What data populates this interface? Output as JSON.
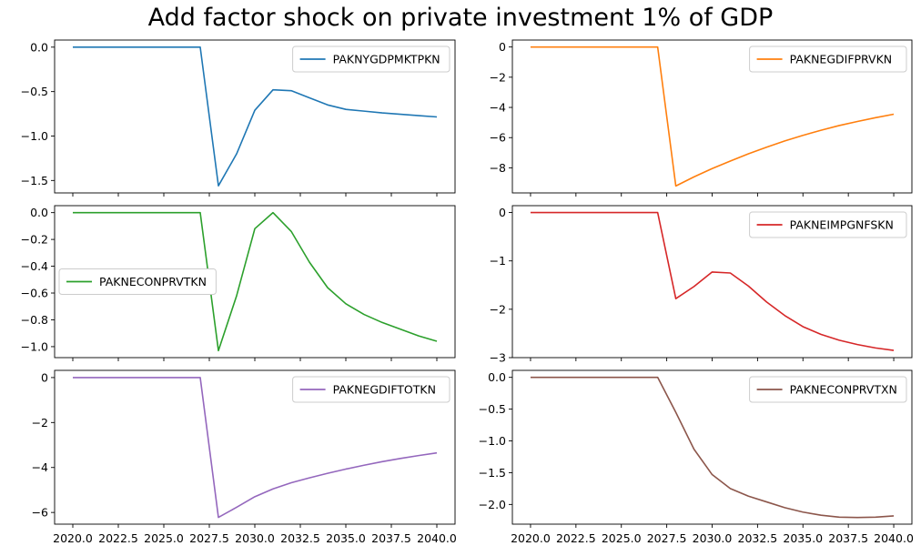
{
  "figure_title": "Add factor shock on private investment 1% of GDP",
  "chart_data": [
    {
      "type": "line",
      "series": [
        {
          "name": "PAKNYGDPMKTPKN",
          "color": "#1f77b4",
          "x": [
            2020,
            2021,
            2022,
            2023,
            2024,
            2025,
            2026,
            2027,
            2028,
            2029,
            2030,
            2031,
            2032,
            2033,
            2034,
            2035,
            2036,
            2037,
            2038,
            2039,
            2040
          ],
          "values": [
            0,
            0,
            0,
            0,
            0,
            0,
            0,
            0,
            -1.56,
            -1.2,
            -0.71,
            -0.48,
            -0.49,
            -0.57,
            -0.65,
            -0.7,
            -0.72,
            -0.74,
            -0.755,
            -0.77,
            -0.785
          ]
        }
      ],
      "xlim": [
        2019,
        2041
      ],
      "ylim": [
        -1.64,
        0.08
      ],
      "yticks": [
        0.0,
        -0.5,
        -1.0,
        -1.5
      ],
      "ytick_labels": [
        "0.0",
        "−0.5",
        "−1.0",
        "−1.5"
      ],
      "xticks": [
        2020.0,
        2022.5,
        2025.0,
        2027.5,
        2030.0,
        2032.5,
        2035.0,
        2037.5,
        2040.0
      ],
      "xtick_labels": [],
      "legend": "upper right",
      "grid": false
    },
    {
      "type": "line",
      "series": [
        {
          "name": "PAKNEGDIFPRVKN",
          "color": "#ff7f0e",
          "x": [
            2020,
            2021,
            2022,
            2023,
            2024,
            2025,
            2026,
            2027,
            2028,
            2029,
            2030,
            2031,
            2032,
            2033,
            2034,
            2035,
            2036,
            2037,
            2038,
            2039,
            2040
          ],
          "values": [
            0,
            0,
            0,
            0,
            0,
            0,
            0,
            0,
            -9.2,
            -8.6,
            -8.05,
            -7.55,
            -7.07,
            -6.63,
            -6.22,
            -5.85,
            -5.51,
            -5.2,
            -4.93,
            -4.68,
            -4.45
          ]
        }
      ],
      "xlim": [
        2019,
        2041
      ],
      "ylim": [
        -9.66,
        0.46
      ],
      "yticks": [
        0,
        -2,
        -4,
        -6,
        -8
      ],
      "ytick_labels": [
        "0",
        "−2",
        "−4",
        "−6",
        "−8"
      ],
      "xticks": [
        2020.0,
        2022.5,
        2025.0,
        2027.5,
        2030.0,
        2032.5,
        2035.0,
        2037.5,
        2040.0
      ],
      "xtick_labels": [],
      "legend": "upper right",
      "grid": false
    },
    {
      "type": "line",
      "series": [
        {
          "name": "PAKNECONPRVTKN",
          "color": "#2ca02c",
          "x": [
            2020,
            2021,
            2022,
            2023,
            2024,
            2025,
            2026,
            2027,
            2028,
            2029,
            2030,
            2031,
            2032,
            2033,
            2034,
            2035,
            2036,
            2037,
            2038,
            2039,
            2040
          ],
          "values": [
            0,
            0,
            0,
            0,
            0,
            0,
            0,
            0,
            -1.03,
            -0.62,
            -0.12,
            0.0,
            -0.14,
            -0.37,
            -0.56,
            -0.68,
            -0.76,
            -0.82,
            -0.87,
            -0.92,
            -0.96
          ]
        }
      ],
      "xlim": [
        2019,
        2041
      ],
      "ylim": [
        -1.082,
        0.052
      ],
      "yticks": [
        0.0,
        -0.2,
        -0.4,
        -0.6,
        -0.8,
        -1.0
      ],
      "ytick_labels": [
        "0.0",
        "−0.2",
        "−0.4",
        "−0.6",
        "−0.8",
        "−1.0"
      ],
      "xticks": [
        2020.0,
        2022.5,
        2025.0,
        2027.5,
        2030.0,
        2032.5,
        2035.0,
        2037.5,
        2040.0
      ],
      "xtick_labels": [],
      "legend": "center left",
      "grid": false
    },
    {
      "type": "line",
      "series": [
        {
          "name": "PAKNEIMPGNFSKN",
          "color": "#d62728",
          "x": [
            2020,
            2021,
            2022,
            2023,
            2024,
            2025,
            2026,
            2027,
            2028,
            2029,
            2030,
            2031,
            2032,
            2033,
            2034,
            2035,
            2036,
            2037,
            2038,
            2039,
            2040
          ],
          "values": [
            0,
            0,
            0,
            0,
            0,
            0,
            0,
            0,
            -1.78,
            -1.53,
            -1.23,
            -1.25,
            -1.52,
            -1.85,
            -2.13,
            -2.36,
            -2.52,
            -2.64,
            -2.73,
            -2.8,
            -2.85
          ]
        }
      ],
      "xlim": [
        2019,
        2041
      ],
      "ylim": [
        -3.0,
        0.142
      ],
      "yticks": [
        0,
        -1,
        -2,
        -3
      ],
      "ytick_labels": [
        "0",
        "−1",
        "−2",
        "−3"
      ],
      "xticks": [
        2020.0,
        2022.5,
        2025.0,
        2027.5,
        2030.0,
        2032.5,
        2035.0,
        2037.5,
        2040.0
      ],
      "xtick_labels": [],
      "legend": "upper right",
      "grid": false
    },
    {
      "type": "line",
      "series": [
        {
          "name": "PAKNEGDIFTOTKN",
          "color": "#9467bd",
          "x": [
            2020,
            2021,
            2022,
            2023,
            2024,
            2025,
            2026,
            2027,
            2028,
            2029,
            2030,
            2031,
            2032,
            2033,
            2034,
            2035,
            2036,
            2037,
            2038,
            2039,
            2040
          ],
          "values": [
            0,
            0,
            0,
            0,
            0,
            0,
            0,
            0,
            -6.22,
            -5.77,
            -5.3,
            -4.95,
            -4.68,
            -4.46,
            -4.26,
            -4.07,
            -3.9,
            -3.74,
            -3.6,
            -3.47,
            -3.35
          ]
        }
      ],
      "xlim": [
        2019,
        2041
      ],
      "ylim": [
        -6.52,
        0.32
      ],
      "yticks": [
        0,
        -2,
        -4,
        -6
      ],
      "ytick_labels": [
        "0",
        "−2",
        "−4",
        "−6"
      ],
      "xticks": [
        2020.0,
        2022.5,
        2025.0,
        2027.5,
        2030.0,
        2032.5,
        2035.0,
        2037.5,
        2040.0
      ],
      "xtick_labels": [
        "2020.0",
        "2022.5",
        "2025.0",
        "2027.5",
        "2030.0",
        "2032.5",
        "2035.0",
        "2037.5",
        "2040.0"
      ],
      "legend": "upper right",
      "grid": false
    },
    {
      "type": "line",
      "series": [
        {
          "name": "PAKNECONPRVTXN",
          "color": "#8c564b",
          "x": [
            2020,
            2021,
            2022,
            2023,
            2024,
            2025,
            2026,
            2027,
            2028,
            2029,
            2030,
            2031,
            2032,
            2033,
            2034,
            2035,
            2036,
            2037,
            2038,
            2039,
            2040
          ],
          "values": [
            0,
            0,
            0,
            0,
            0,
            0,
            0,
            0,
            -0.55,
            -1.13,
            -1.53,
            -1.75,
            -1.87,
            -1.96,
            -2.05,
            -2.12,
            -2.17,
            -2.2,
            -2.205,
            -2.2,
            -2.18
          ]
        }
      ],
      "xlim": [
        2019,
        2041
      ],
      "ylim": [
        -2.31,
        0.11
      ],
      "yticks": [
        0.0,
        -0.5,
        -1.0,
        -1.5,
        -2.0
      ],
      "ytick_labels": [
        "0.0",
        "−0.5",
        "−1.0",
        "−1.5",
        "−2.0"
      ],
      "xticks": [
        2020.0,
        2022.5,
        2025.0,
        2027.5,
        2030.0,
        2032.5,
        2035.0,
        2037.5,
        2040.0
      ],
      "xtick_labels": [
        "2020.0",
        "2022.5",
        "2025.0",
        "2027.5",
        "2030.0",
        "2032.5",
        "2035.0",
        "2037.5",
        "2040.0"
      ],
      "legend": "upper right",
      "grid": false
    }
  ]
}
